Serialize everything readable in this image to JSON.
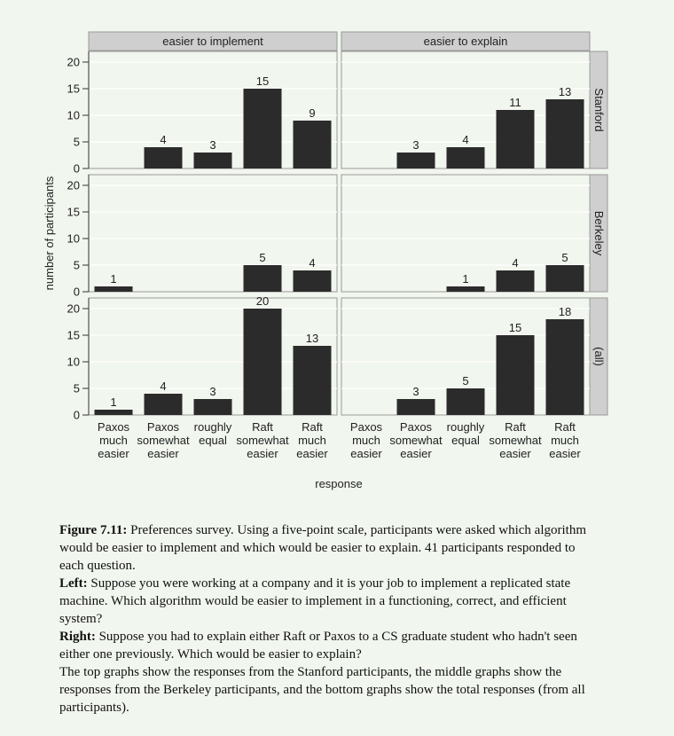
{
  "chart_data": {
    "type": "bar",
    "ylabel": "number of participants",
    "xlabel": "response",
    "ylim": [
      0,
      22
    ],
    "yticks": [
      0,
      5,
      10,
      15,
      20
    ],
    "categories": [
      [
        "Paxos",
        "much",
        "easier"
      ],
      [
        "Paxos",
        "somewhat",
        "easier"
      ],
      [
        "roughly",
        "equal"
      ],
      [
        "Raft",
        "somewhat",
        "easier"
      ],
      [
        "Raft",
        "much",
        "easier"
      ]
    ],
    "columns": [
      "easier to implement",
      "easier to explain"
    ],
    "rows": [
      "Stanford",
      "Berkeley",
      "(all)"
    ],
    "panels": [
      {
        "row": "Stanford",
        "column": "easier to implement",
        "values": [
          0,
          4,
          3,
          15,
          9
        ]
      },
      {
        "row": "Stanford",
        "column": "easier to explain",
        "values": [
          0,
          3,
          4,
          11,
          13
        ]
      },
      {
        "row": "Berkeley",
        "column": "easier to implement",
        "values": [
          1,
          0,
          0,
          5,
          4
        ]
      },
      {
        "row": "Berkeley",
        "column": "easier to explain",
        "values": [
          0,
          0,
          1,
          4,
          5
        ]
      },
      {
        "row": "(all)",
        "column": "easier to implement",
        "values": [
          1,
          4,
          3,
          20,
          13
        ]
      },
      {
        "row": "(all)",
        "column": "easier to explain",
        "values": [
          0,
          3,
          5,
          15,
          18
        ]
      }
    ],
    "colors": {
      "bar": "#2b2b2b",
      "strip": "#cfcfcf",
      "panel": "#f1f6ee",
      "grid": "#ffffff"
    }
  },
  "caption": {
    "figure_label": "Figure 7.11:",
    "intro": "Preferences survey. Using a five-point scale, participants were asked which algorithm would be easier to implement and which would be easier to explain. 41 participants responded to each question.",
    "left_label": "Left:",
    "left_text": "Suppose you were working at a company and it is your job to implement a replicated state machine. Which algorithm would be easier to implement in a functioning, correct, and efficient system?",
    "right_label": "Right:",
    "right_text": "Suppose you had to explain either Raft or Paxos to a CS graduate student who hadn't seen either one previously. Which would be easier to explain?",
    "closing": "The top graphs show the responses from the Stanford participants, the middle graphs show the responses from the Berkeley participants, and the bottom graphs show the total responses (from all participants)."
  }
}
